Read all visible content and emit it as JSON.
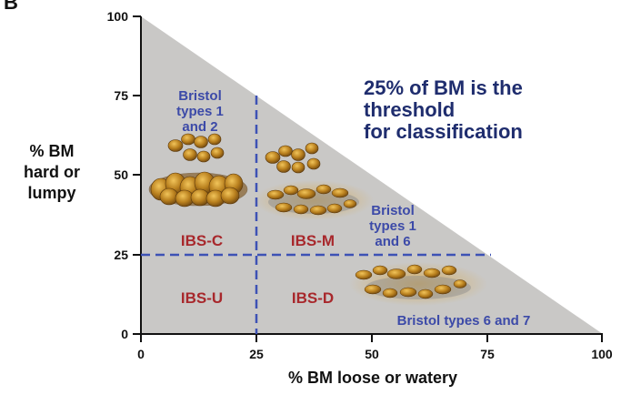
{
  "panel_letter": "B",
  "y_axis_label": [
    "% BM",
    "hard or",
    "lumpy"
  ],
  "x_axis_label": "% BM loose or watery",
  "x_ticks": [
    "0",
    "25",
    "50",
    "75",
    "100"
  ],
  "y_ticks": [
    "0",
    "25",
    "50",
    "75",
    "100"
  ],
  "threshold_text": [
    "25% of BM is the",
    "threshold",
    "for classification"
  ],
  "annotations": {
    "types_1_2": [
      "Bristol",
      "types 1",
      "and 2"
    ],
    "types_1_6": [
      "Bristol",
      "types 1",
      "and 6"
    ],
    "types_6_7": "Bristol types 6 and 7"
  },
  "regions": {
    "ibs_c": "IBS-C",
    "ibs_m": "IBS-M",
    "ibs_u": "IBS-U",
    "ibs_d": "IBS-D"
  },
  "colors": {
    "triangle_fill": "#c9c8c6",
    "threshold_line": "#3d52b5",
    "region_label": "#a8282c",
    "annotation": "#3c4aa8",
    "stool": "#b07a22"
  },
  "icons": [
    "hard-lumps-icon",
    "hard-lumps-icon",
    "lumpy-sausage-icon",
    "fluffy-mushy-icon",
    "watery-mushy-icon"
  ]
}
